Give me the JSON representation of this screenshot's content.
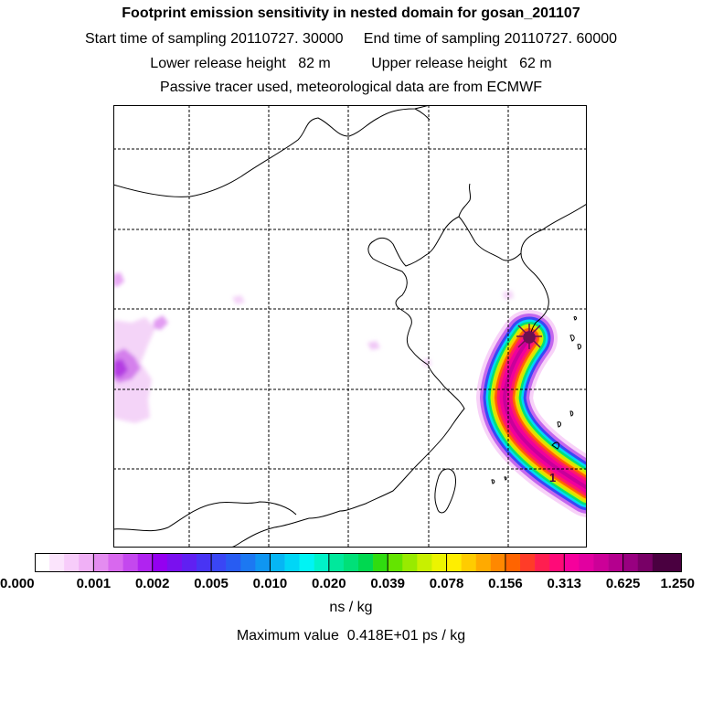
{
  "title": "Footprint emission sensitivity in nested domain for gosan_201107",
  "sampling": {
    "start_label": "Start time of sampling",
    "start_value": "20110727. 30000",
    "end_label": "End time of sampling",
    "end_value": "20110727. 60000"
  },
  "release": {
    "lower_label": "Lower release height",
    "lower_value": "82 m",
    "upper_label": "Upper release height",
    "upper_value": "62 m"
  },
  "tracer_note": "Passive tracer used, meteorological data are from ECMWF",
  "legend": {
    "tick_labels": [
      "0.000",
      "0.001",
      "0.002",
      "0.005",
      "0.010",
      "0.020",
      "0.039",
      "0.078",
      "0.156",
      "0.313",
      "0.625",
      "1.250"
    ],
    "colors": [
      "#ffffff",
      "#fbe4fc",
      "#f7ccfa",
      "#f0b0f6",
      "#e48cf0",
      "#d868ee",
      "#c448ee",
      "#b023f0",
      "#9400f0",
      "#7a10ef",
      "#6020f2",
      "#4834f4",
      "#3a46f5",
      "#285cf2",
      "#1c78f2",
      "#0f96f2",
      "#06b6f4",
      "#00d6f6",
      "#00f4f4",
      "#00f2c8",
      "#00e89c",
      "#00e078",
      "#00d850",
      "#30dc10",
      "#64e400",
      "#98ea00",
      "#c8f000",
      "#ecf400",
      "#ffee00",
      "#ffcc00",
      "#ffaa00",
      "#ff8800",
      "#ff6400",
      "#ff3c28",
      "#ff1e50",
      "#ff0a78",
      "#f6009c",
      "#e200a0",
      "#cc0098",
      "#b4008e",
      "#980080",
      "#780066",
      "#4a0040"
    ],
    "units": "ns / kg"
  },
  "max_value": "Maximum value  0.418E+01 ps / kg",
  "map": {
    "grid_color": "#000000",
    "receptor_color": "#6b1050",
    "receptor_mark": "star-marker",
    "plume_marker_label": "1"
  }
}
